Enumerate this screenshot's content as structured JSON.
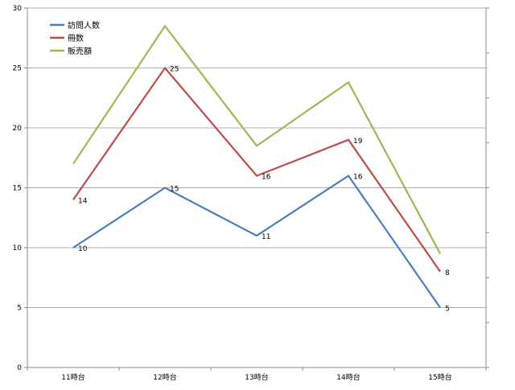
{
  "chart_data": {
    "type": "line",
    "categories": [
      "11時台",
      "12時台",
      "13時台",
      "14時台",
      "15時台"
    ],
    "series": [
      {
        "name": "訪問人数",
        "values": [
          10,
          15,
          11,
          16,
          5
        ],
        "color": "#4a7ebb",
        "labels": [
          "10",
          "15",
          "11",
          "16",
          "5"
        ]
      },
      {
        "name": "冊数",
        "values": [
          14,
          25,
          16,
          19,
          8
        ],
        "color": "#be4b48",
        "labels": [
          "14",
          "25",
          "16",
          "19",
          "8"
        ]
      },
      {
        "name": "販売額",
        "values": [
          17,
          28.5,
          18.5,
          23.8,
          9.5
        ],
        "color": "#98b954",
        "labels": [
          "",
          "",
          "",
          "",
          ""
        ]
      }
    ],
    "yticks": [
      "0",
      "5",
      "10",
      "15",
      "20",
      "25",
      "30"
    ],
    "ylim": [
      0,
      30
    ],
    "grid": true,
    "legend_position": "top-left",
    "gridline_color": "#b0b0b0",
    "axis_color": "#888888"
  }
}
